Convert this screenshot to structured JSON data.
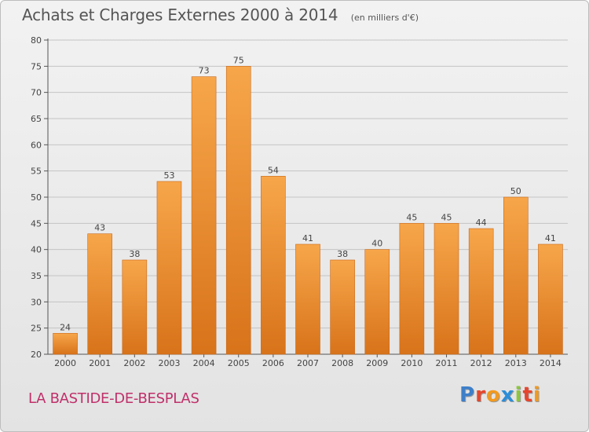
{
  "title": "Achats et Charges Externes 2000 à 2014",
  "unit_note": "(en milliers d'€)",
  "commune": "LA BASTIDE-DE-BESPLAS",
  "brand": {
    "text": "Proxiti",
    "letter_colors": [
      "#3d7fc9",
      "#e6462d",
      "#f29a1f",
      "#2c8ed8",
      "#8dc63f",
      "#e6462d",
      "#f29a1f"
    ]
  },
  "colors": {
    "bar_top": "#f7a64a",
    "bar_bottom": "#d8731a",
    "grid": "#c4c4c4",
    "axis": "#555555"
  },
  "chart_data": {
    "type": "bar",
    "title": "Achats et Charges Externes 2000 à 2014",
    "subtitle": "(en milliers d'€)",
    "xlabel": "",
    "ylabel": "",
    "categories": [
      "2000",
      "2001",
      "2002",
      "2003",
      "2004",
      "2005",
      "2006",
      "2007",
      "2008",
      "2009",
      "2010",
      "2011",
      "2012",
      "2013",
      "2014"
    ],
    "values": [
      24,
      43,
      38,
      53,
      73,
      75,
      54,
      41,
      38,
      40,
      45,
      45,
      44,
      50,
      41
    ],
    "ylim": [
      20,
      80
    ],
    "yticks": [
      20,
      25,
      30,
      35,
      40,
      45,
      50,
      55,
      60,
      65,
      70,
      75,
      80
    ],
    "grid": true,
    "legend": "none"
  }
}
